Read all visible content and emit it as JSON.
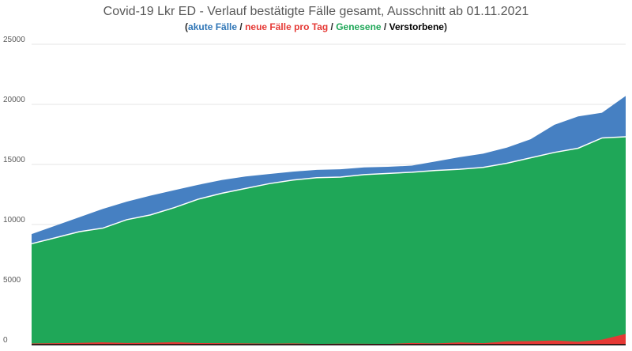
{
  "chart_data": {
    "type": "area",
    "title": "Covid-19 Lkr ED - Verlauf bestätigte Fälle gesamt, Ausschnitt ab 01.11.2021",
    "subtitle": {
      "open": "(",
      "series1": "akute Fälle",
      "sep1": " / ",
      "series2": "neue Fälle pro Tag",
      "sep2": " / ",
      "series3": "Genesene",
      "sep3": " / ",
      "series4": "Verstorbene",
      "close": ")"
    },
    "xlabel": "",
    "ylabel": "",
    "ylim": [
      0,
      25000
    ],
    "yticks": [
      "0",
      "5000",
      "10000",
      "15000",
      "20000",
      "25000"
    ],
    "grid": true,
    "stacked_series": [
      "Genesene",
      "akute Fälle"
    ],
    "colors": {
      "akute Fälle": "#4680c2",
      "neue Fälle pro Tag": "#e53935",
      "Genesene": "#1fa758",
      "Verstorbene": "#000000",
      "title": "#595959"
    },
    "x": [
      0,
      10,
      20,
      30,
      40,
      50,
      60,
      70,
      80,
      90,
      100,
      110,
      120,
      130,
      140,
      150,
      160,
      170,
      180,
      190,
      200,
      210,
      220,
      230,
      240,
      250
    ],
    "series": [
      {
        "name": "Genesene",
        "values": [
          8400,
          8900,
          9400,
          9700,
          10400,
          10800,
          11400,
          12100,
          12600,
          13000,
          13400,
          13700,
          13900,
          13950,
          14150,
          14250,
          14350,
          14500,
          14600,
          14750,
          15100,
          15550,
          16000,
          16350,
          17200,
          17300
        ]
      },
      {
        "name": "akute Fälle",
        "values": [
          800,
          1000,
          1200,
          1600,
          1500,
          1600,
          1450,
          1200,
          1100,
          1000,
          800,
          700,
          650,
          650,
          600,
          550,
          550,
          750,
          1000,
          1150,
          1300,
          1550,
          2300,
          2650,
          2100,
          3400
        ]
      },
      {
        "name": "neue Fälle pro Tag",
        "values": [
          100,
          120,
          150,
          200,
          140,
          160,
          210,
          130,
          120,
          110,
          80,
          110,
          60,
          80,
          70,
          60,
          140,
          100,
          190,
          120,
          280,
          300,
          350,
          250,
          420,
          900
        ]
      },
      {
        "name": "Verstorbene",
        "values": [
          1,
          1,
          2,
          1,
          2,
          1,
          3,
          1,
          2,
          1,
          1,
          2,
          1,
          1,
          0,
          1,
          1,
          1,
          2,
          1,
          2,
          2,
          3,
          2,
          2,
          3
        ]
      }
    ]
  }
}
